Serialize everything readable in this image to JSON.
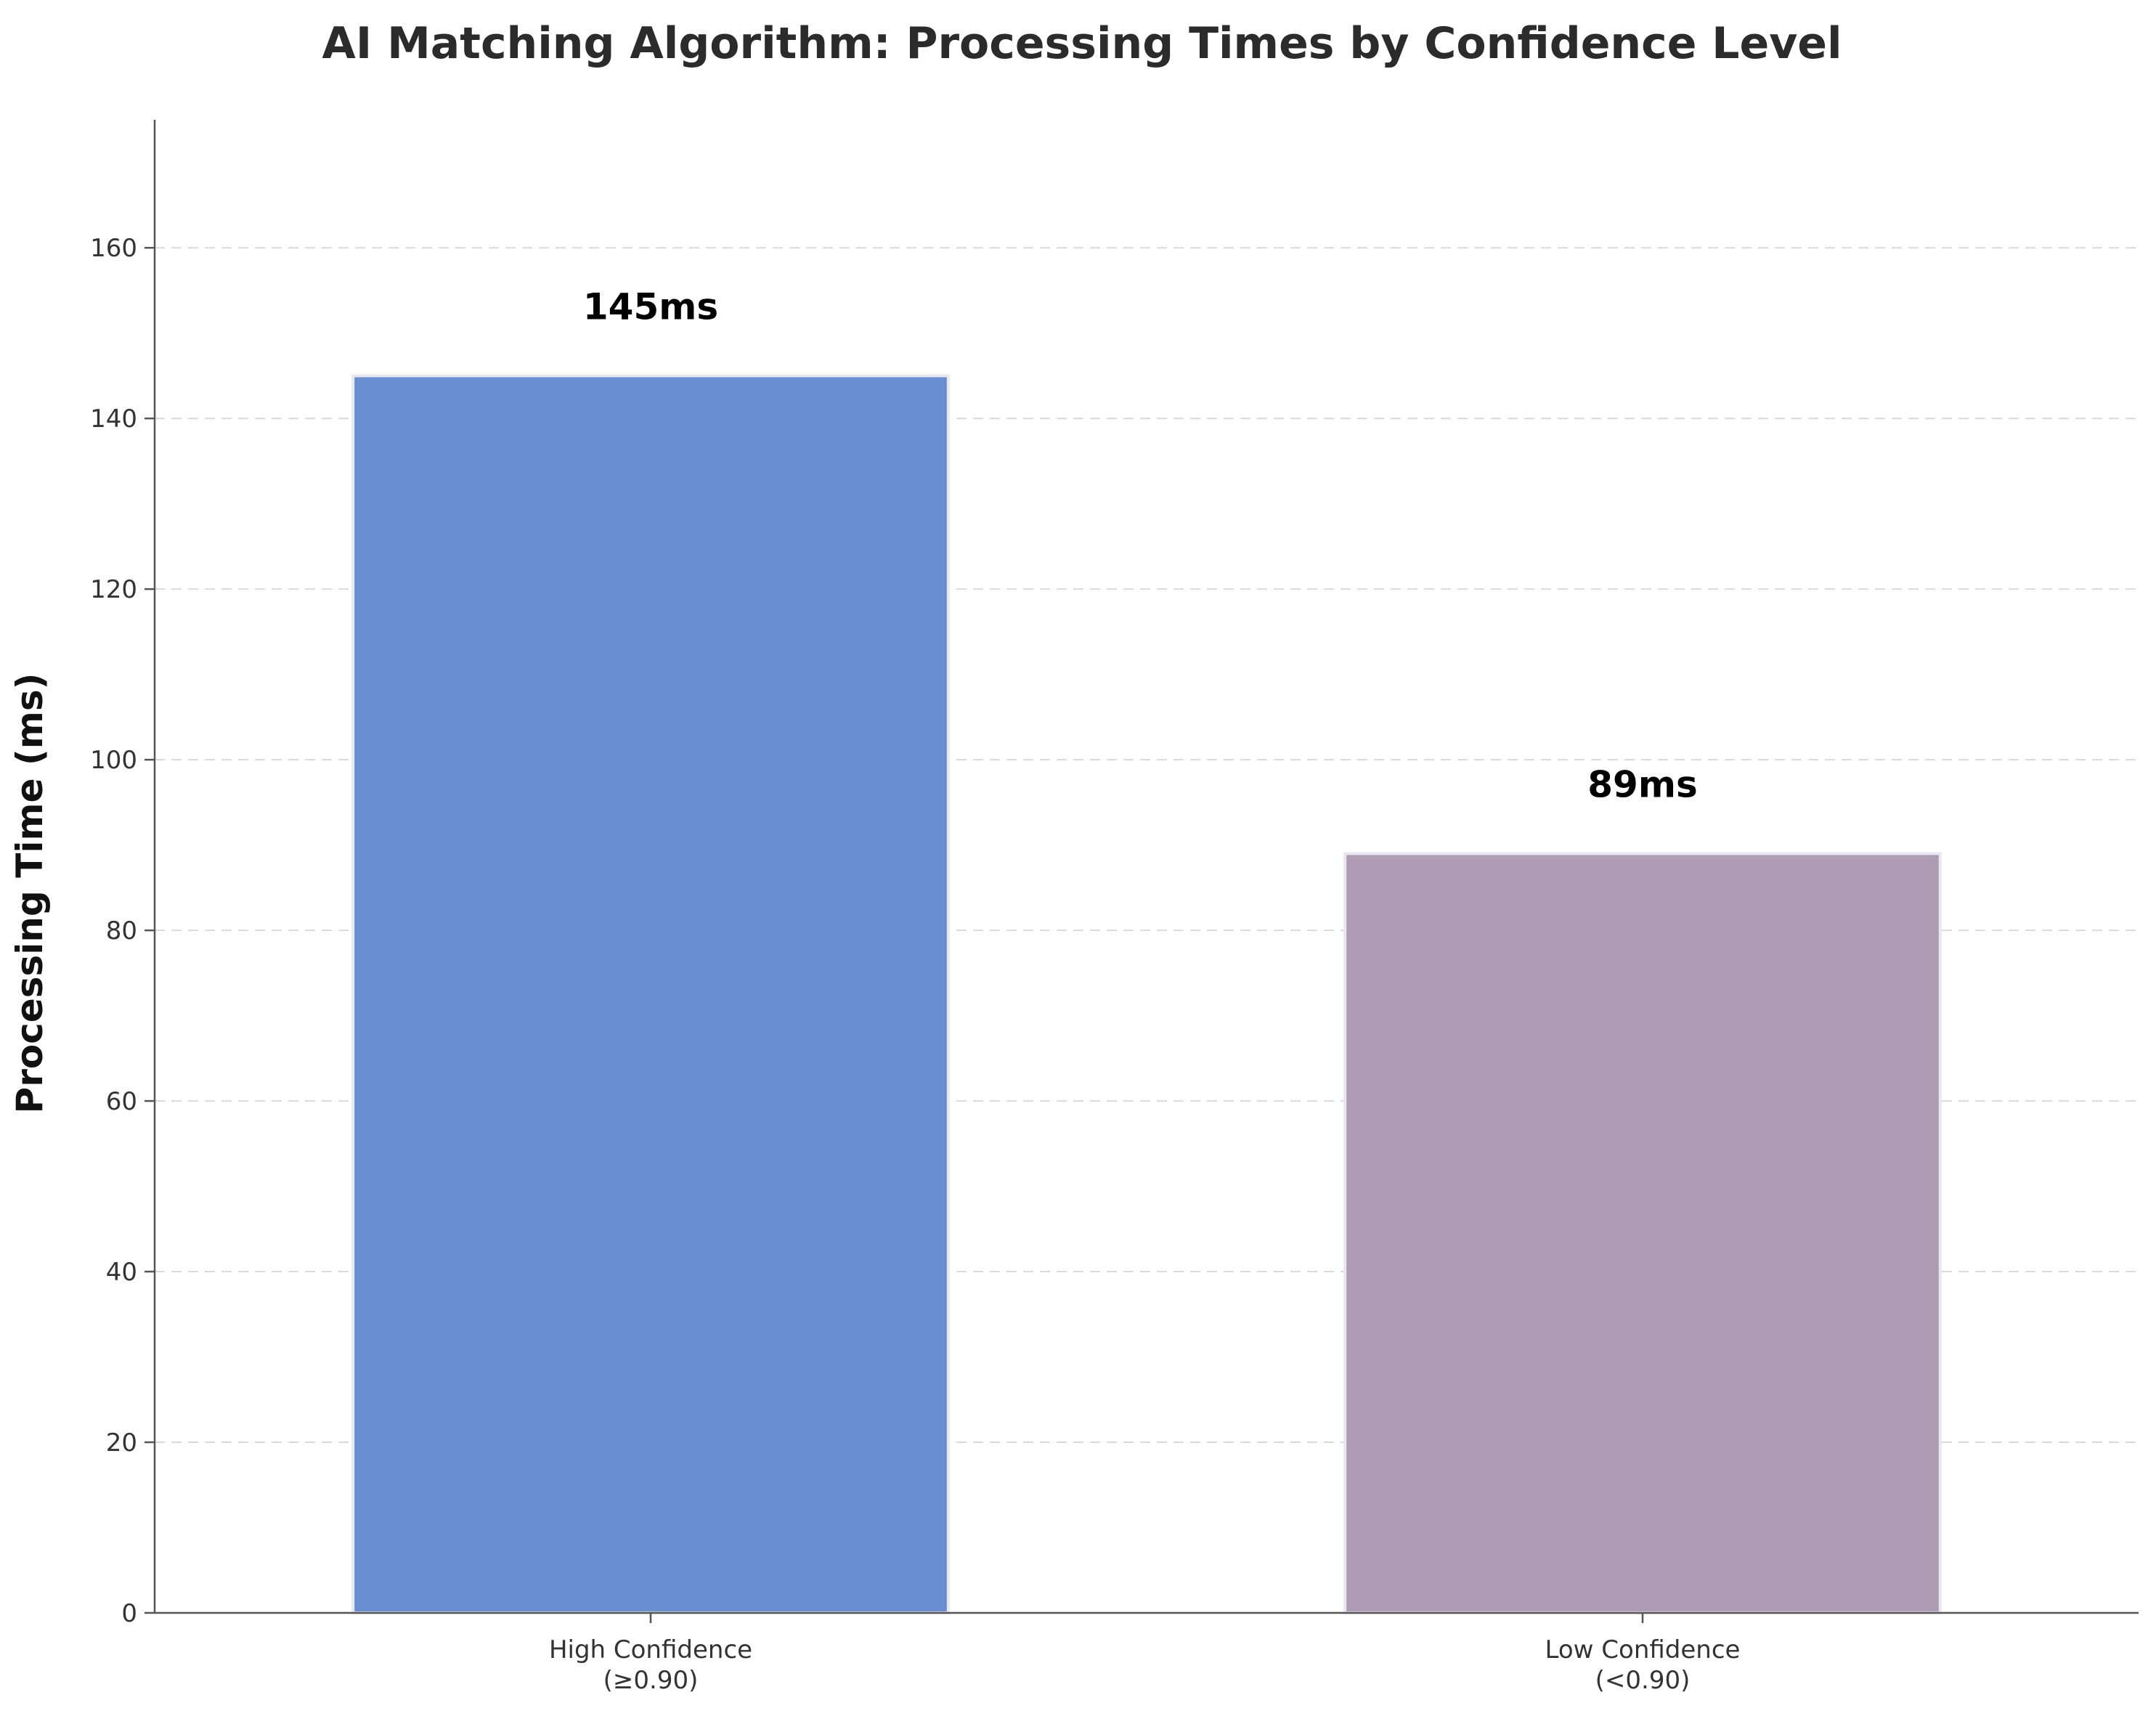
{
  "chart_data": {
    "type": "bar",
    "title": "AI Matching Algorithm: Processing Times by Confidence Level",
    "xlabel": "",
    "ylabel": "Processing Time (ms)",
    "categories": [
      [
        "High Confidence",
        "(≥0.90)"
      ],
      [
        "Low Confidence",
        "(<0.90)"
      ]
    ],
    "values": [
      145,
      89
    ],
    "value_labels": [
      "145ms",
      "89ms"
    ],
    "bar_colors": [
      "#6a8ecf",
      "#ae9cb4"
    ],
    "ylim": [
      0,
      175
    ],
    "yticks": [
      0,
      20,
      40,
      60,
      80,
      100,
      120,
      140,
      160
    ],
    "ytick_labels": [
      "0",
      "20",
      "40",
      "60",
      "80",
      "100",
      "120",
      "140",
      "160"
    ],
    "grid": "horizontal-dashed",
    "legend": "none"
  }
}
